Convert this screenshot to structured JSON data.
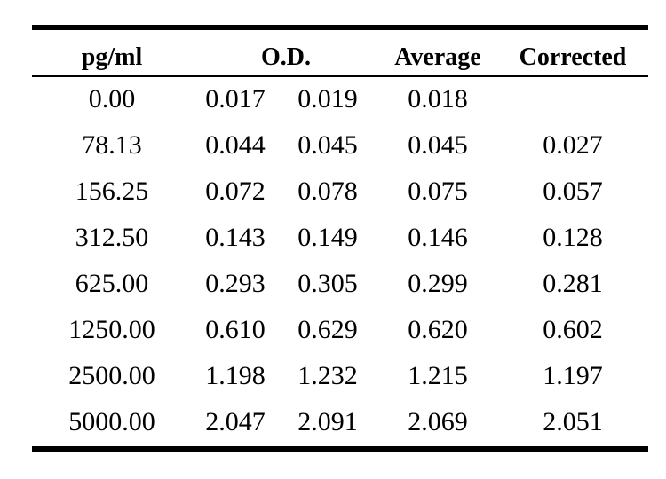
{
  "table": {
    "headers": {
      "concentration": "pg/ml",
      "od": "O.D.",
      "average": "Average",
      "corrected": "Corrected"
    },
    "rows": [
      {
        "conc": "0.00",
        "od1": "0.017",
        "od2": "0.019",
        "avg": "0.018",
        "corr": ""
      },
      {
        "conc": "78.13",
        "od1": "0.044",
        "od2": "0.045",
        "avg": "0.045",
        "corr": "0.027"
      },
      {
        "conc": "156.25",
        "od1": "0.072",
        "od2": "0.078",
        "avg": "0.075",
        "corr": "0.057"
      },
      {
        "conc": "312.50",
        "od1": "0.143",
        "od2": "0.149",
        "avg": "0.146",
        "corr": "0.128"
      },
      {
        "conc": "625.00",
        "od1": "0.293",
        "od2": "0.305",
        "avg": "0.299",
        "corr": "0.281"
      },
      {
        "conc": "1250.00",
        "od1": "0.610",
        "od2": "0.629",
        "avg": "0.620",
        "corr": "0.602"
      },
      {
        "conc": "2500.00",
        "od1": "1.198",
        "od2": "1.232",
        "avg": "1.215",
        "corr": "1.197"
      },
      {
        "conc": "5000.00",
        "od1": "2.047",
        "od2": "2.091",
        "avg": "2.069",
        "corr": "2.051"
      }
    ]
  }
}
